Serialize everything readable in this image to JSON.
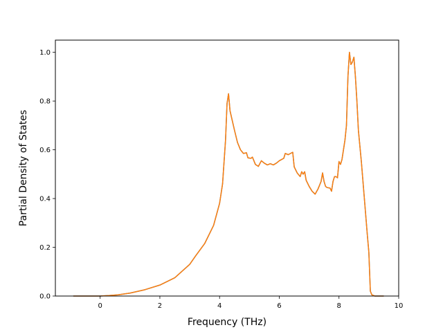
{
  "chart_data": {
    "type": "line",
    "title": "",
    "xlabel": "Frequency (THz)",
    "ylabel": "Partial Density of States",
    "xlim": [
      -1.5,
      10
    ],
    "ylim": [
      0,
      1.05
    ],
    "x_ticks": [
      0,
      2,
      4,
      6,
      8,
      10
    ],
    "y_ticks": [
      0.0,
      0.2,
      0.4,
      0.6,
      0.8,
      1.0
    ],
    "x_tick_labels": [
      "0",
      "2",
      "4",
      "6",
      "8",
      "10"
    ],
    "y_tick_labels": [
      "0.0",
      "0.2",
      "0.4",
      "0.6",
      "0.8",
      "1.0"
    ],
    "grid": false,
    "legend": "none",
    "series": [
      {
        "color": "#1f77b4",
        "points": [
          [
            -0.9,
            0
          ],
          [
            0,
            0
          ],
          [
            0.3,
            0.002
          ],
          [
            0.6,
            0.005
          ],
          [
            1.0,
            0.012
          ],
          [
            1.5,
            0.026
          ],
          [
            2.0,
            0.045
          ],
          [
            2.5,
            0.075
          ],
          [
            3.0,
            0.13
          ],
          [
            3.2,
            0.165
          ],
          [
            3.5,
            0.215
          ],
          [
            3.8,
            0.29
          ],
          [
            4.0,
            0.38
          ],
          [
            4.1,
            0.46
          ],
          [
            4.2,
            0.64
          ],
          [
            4.25,
            0.79
          ],
          [
            4.3,
            0.83
          ],
          [
            4.35,
            0.76
          ],
          [
            4.5,
            0.68
          ],
          [
            4.6,
            0.63
          ],
          [
            4.7,
            0.6
          ],
          [
            4.8,
            0.585
          ],
          [
            4.9,
            0.588
          ],
          [
            4.95,
            0.567
          ],
          [
            5.05,
            0.565
          ],
          [
            5.1,
            0.57
          ],
          [
            5.2,
            0.54
          ],
          [
            5.3,
            0.532
          ],
          [
            5.4,
            0.555
          ],
          [
            5.5,
            0.545
          ],
          [
            5.6,
            0.538
          ],
          [
            5.7,
            0.543
          ],
          [
            5.8,
            0.538
          ],
          [
            5.9,
            0.545
          ],
          [
            6.0,
            0.555
          ],
          [
            6.15,
            0.565
          ],
          [
            6.2,
            0.585
          ],
          [
            6.3,
            0.58
          ],
          [
            6.45,
            0.59
          ],
          [
            6.5,
            0.53
          ],
          [
            6.6,
            0.505
          ],
          [
            6.7,
            0.49
          ],
          [
            6.75,
            0.51
          ],
          [
            6.8,
            0.5
          ],
          [
            6.85,
            0.51
          ],
          [
            6.9,
            0.475
          ],
          [
            7.0,
            0.45
          ],
          [
            7.1,
            0.43
          ],
          [
            7.2,
            0.418
          ],
          [
            7.3,
            0.44
          ],
          [
            7.4,
            0.47
          ],
          [
            7.45,
            0.505
          ],
          [
            7.5,
            0.47
          ],
          [
            7.55,
            0.45
          ],
          [
            7.6,
            0.445
          ],
          [
            7.7,
            0.443
          ],
          [
            7.75,
            0.43
          ],
          [
            7.8,
            0.47
          ],
          [
            7.85,
            0.49
          ],
          [
            7.9,
            0.49
          ],
          [
            7.95,
            0.485
          ],
          [
            8.0,
            0.552
          ],
          [
            8.05,
            0.54
          ],
          [
            8.1,
            0.56
          ],
          [
            8.2,
            0.64
          ],
          [
            8.25,
            0.7
          ],
          [
            8.3,
            0.9
          ],
          [
            8.35,
            1.0
          ],
          [
            8.4,
            0.95
          ],
          [
            8.45,
            0.96
          ],
          [
            8.5,
            0.98
          ],
          [
            8.55,
            0.9
          ],
          [
            8.6,
            0.8
          ],
          [
            8.65,
            0.68
          ],
          [
            8.75,
            0.55
          ],
          [
            8.85,
            0.4
          ],
          [
            8.95,
            0.25
          ],
          [
            9.0,
            0.18
          ],
          [
            9.05,
            0.02
          ],
          [
            9.1,
            0.005
          ],
          [
            9.2,
            0
          ],
          [
            9.5,
            0
          ]
        ]
      },
      {
        "color": "#ff7f0e",
        "points": [
          [
            -0.9,
            0
          ],
          [
            0,
            0
          ],
          [
            0.3,
            0.002
          ],
          [
            0.6,
            0.005
          ],
          [
            1.0,
            0.012
          ],
          [
            1.5,
            0.026
          ],
          [
            2.0,
            0.045
          ],
          [
            2.5,
            0.075
          ],
          [
            3.0,
            0.13
          ],
          [
            3.2,
            0.165
          ],
          [
            3.5,
            0.215
          ],
          [
            3.8,
            0.29
          ],
          [
            4.0,
            0.38
          ],
          [
            4.1,
            0.46
          ],
          [
            4.2,
            0.64
          ],
          [
            4.25,
            0.79
          ],
          [
            4.3,
            0.83
          ],
          [
            4.35,
            0.76
          ],
          [
            4.5,
            0.68
          ],
          [
            4.6,
            0.63
          ],
          [
            4.7,
            0.6
          ],
          [
            4.8,
            0.585
          ],
          [
            4.9,
            0.588
          ],
          [
            4.95,
            0.567
          ],
          [
            5.05,
            0.565
          ],
          [
            5.1,
            0.57
          ],
          [
            5.2,
            0.54
          ],
          [
            5.3,
            0.532
          ],
          [
            5.4,
            0.555
          ],
          [
            5.5,
            0.545
          ],
          [
            5.6,
            0.538
          ],
          [
            5.7,
            0.543
          ],
          [
            5.8,
            0.538
          ],
          [
            5.9,
            0.545
          ],
          [
            6.0,
            0.555
          ],
          [
            6.15,
            0.565
          ],
          [
            6.2,
            0.585
          ],
          [
            6.3,
            0.58
          ],
          [
            6.45,
            0.59
          ],
          [
            6.5,
            0.53
          ],
          [
            6.6,
            0.505
          ],
          [
            6.7,
            0.49
          ],
          [
            6.75,
            0.51
          ],
          [
            6.8,
            0.5
          ],
          [
            6.85,
            0.51
          ],
          [
            6.9,
            0.475
          ],
          [
            7.0,
            0.45
          ],
          [
            7.1,
            0.43
          ],
          [
            7.2,
            0.418
          ],
          [
            7.3,
            0.44
          ],
          [
            7.4,
            0.47
          ],
          [
            7.45,
            0.505
          ],
          [
            7.5,
            0.47
          ],
          [
            7.55,
            0.45
          ],
          [
            7.6,
            0.445
          ],
          [
            7.7,
            0.443
          ],
          [
            7.75,
            0.43
          ],
          [
            7.8,
            0.47
          ],
          [
            7.85,
            0.49
          ],
          [
            7.9,
            0.49
          ],
          [
            7.95,
            0.485
          ],
          [
            8.0,
            0.552
          ],
          [
            8.05,
            0.54
          ],
          [
            8.1,
            0.56
          ],
          [
            8.2,
            0.64
          ],
          [
            8.25,
            0.7
          ],
          [
            8.3,
            0.9
          ],
          [
            8.35,
            1.0
          ],
          [
            8.4,
            0.95
          ],
          [
            8.45,
            0.96
          ],
          [
            8.5,
            0.98
          ],
          [
            8.55,
            0.9
          ],
          [
            8.6,
            0.8
          ],
          [
            8.65,
            0.68
          ],
          [
            8.75,
            0.55
          ],
          [
            8.85,
            0.4
          ],
          [
            8.95,
            0.25
          ],
          [
            9.0,
            0.18
          ],
          [
            9.05,
            0.02
          ],
          [
            9.1,
            0.005
          ],
          [
            9.2,
            0
          ],
          [
            9.5,
            0
          ]
        ]
      }
    ]
  }
}
